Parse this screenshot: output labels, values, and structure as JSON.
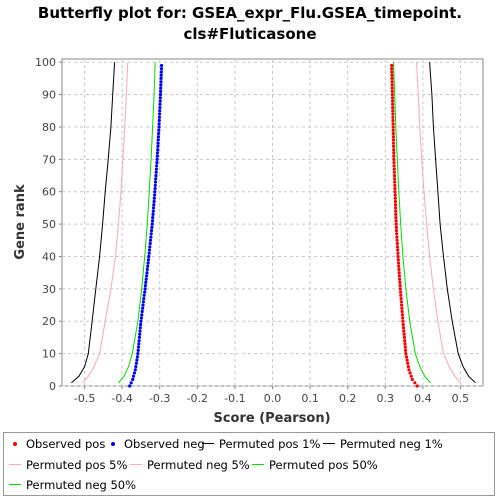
{
  "chart_data": {
    "type": "line",
    "title_lines": [
      "Butterfly plot for: GSEA_expr_Flu.GSEA_timepoint.",
      "cls#Fluticasone"
    ],
    "xlabel": "Score (Pearson)",
    "ylabel": "Gene rank",
    "xlim": [
      -0.56,
      0.56
    ],
    "ylim": [
      0,
      101
    ],
    "x_ticks": [
      -0.5,
      -0.4,
      -0.3,
      -0.2,
      -0.1,
      0.0,
      0.1,
      0.2,
      0.3,
      0.4,
      0.5
    ],
    "x_tick_labels": [
      "-0.5",
      "-0.4",
      "-0.3",
      "-0.2",
      "-0.1",
      "0.0",
      "0.1",
      "0.2",
      "0.3",
      "0.4",
      "0.5"
    ],
    "y_ticks": [
      0,
      10,
      20,
      30,
      40,
      50,
      60,
      70,
      80,
      90,
      100
    ],
    "y_tick_labels": [
      "0",
      "10",
      "20",
      "30",
      "40",
      "50",
      "60",
      "70",
      "80",
      "90",
      "100"
    ],
    "grid": true,
    "legend_position": "bottom",
    "series": [
      {
        "name": "Observed pos",
        "style": "dots",
        "color": "#ff0000",
        "points": [
          [
            0.385,
            0
          ],
          [
            0.372,
            2
          ],
          [
            0.363,
            5
          ],
          [
            0.355,
            10
          ],
          [
            0.347,
            20
          ],
          [
            0.34,
            30
          ],
          [
            0.334,
            40
          ],
          [
            0.329,
            50
          ],
          [
            0.326,
            60
          ],
          [
            0.323,
            70
          ],
          [
            0.321,
            80
          ],
          [
            0.319,
            90
          ],
          [
            0.317,
            99
          ]
        ]
      },
      {
        "name": "Observed neg",
        "style": "dots",
        "color": "#0000ff",
        "points": [
          [
            -0.38,
            0
          ],
          [
            -0.372,
            2
          ],
          [
            -0.365,
            5
          ],
          [
            -0.358,
            10
          ],
          [
            -0.35,
            20
          ],
          [
            -0.339,
            30
          ],
          [
            -0.329,
            40
          ],
          [
            -0.32,
            50
          ],
          [
            -0.313,
            60
          ],
          [
            -0.307,
            70
          ],
          [
            -0.302,
            80
          ],
          [
            -0.298,
            90
          ],
          [
            -0.295,
            99
          ]
        ]
      },
      {
        "name": "Permuted pos 1%",
        "style": "line",
        "color": "#000000",
        "points": [
          [
            0.54,
            1
          ],
          [
            0.522,
            3
          ],
          [
            0.507,
            6
          ],
          [
            0.494,
            10
          ],
          [
            0.478,
            20
          ],
          [
            0.465,
            30
          ],
          [
            0.455,
            40
          ],
          [
            0.446,
            50
          ],
          [
            0.44,
            60
          ],
          [
            0.434,
            70
          ],
          [
            0.428,
            80
          ],
          [
            0.424,
            90
          ],
          [
            0.418,
            100
          ]
        ]
      },
      {
        "name": "Permuted neg 1%",
        "style": "line",
        "color": "#000000",
        "points": [
          [
            -0.535,
            1
          ],
          [
            -0.515,
            3
          ],
          [
            -0.5,
            6
          ],
          [
            -0.49,
            10
          ],
          [
            -0.48,
            20
          ],
          [
            -0.47,
            30
          ],
          [
            -0.46,
            40
          ],
          [
            -0.452,
            50
          ],
          [
            -0.445,
            60
          ],
          [
            -0.437,
            70
          ],
          [
            -0.43,
            80
          ],
          [
            -0.425,
            90
          ],
          [
            -0.42,
            100
          ]
        ]
      },
      {
        "name": "Permuted pos 5%",
        "style": "line",
        "color": "#ffaaaa",
        "points": [
          [
            0.5,
            1
          ],
          [
            0.485,
            3
          ],
          [
            0.47,
            6
          ],
          [
            0.455,
            10
          ],
          [
            0.44,
            20
          ],
          [
            0.428,
            30
          ],
          [
            0.418,
            40
          ],
          [
            0.41,
            50
          ],
          [
            0.403,
            60
          ],
          [
            0.397,
            70
          ],
          [
            0.392,
            80
          ],
          [
            0.388,
            90
          ],
          [
            0.383,
            100
          ]
        ]
      },
      {
        "name": "Permuted neg 5%",
        "style": "line",
        "color": "#ffaaaa",
        "points": [
          [
            -0.505,
            1
          ],
          [
            -0.49,
            3
          ],
          [
            -0.475,
            6
          ],
          [
            -0.46,
            10
          ],
          [
            -0.445,
            20
          ],
          [
            -0.43,
            30
          ],
          [
            -0.418,
            40
          ],
          [
            -0.41,
            50
          ],
          [
            -0.403,
            60
          ],
          [
            -0.398,
            70
          ],
          [
            -0.393,
            80
          ],
          [
            -0.389,
            90
          ],
          [
            -0.385,
            100
          ]
        ]
      },
      {
        "name": "Permuted pos 50%",
        "style": "line",
        "color": "#00dd00",
        "points": [
          [
            0.42,
            1
          ],
          [
            0.405,
            3
          ],
          [
            0.392,
            6
          ],
          [
            0.38,
            10
          ],
          [
            0.365,
            20
          ],
          [
            0.355,
            30
          ],
          [
            0.347,
            40
          ],
          [
            0.341,
            50
          ],
          [
            0.336,
            60
          ],
          [
            0.332,
            70
          ],
          [
            0.328,
            80
          ],
          [
            0.325,
            90
          ],
          [
            0.322,
            100
          ]
        ]
      },
      {
        "name": "Permuted neg 50%",
        "style": "line",
        "color": "#00dd00",
        "points": [
          [
            -0.41,
            1
          ],
          [
            -0.395,
            3
          ],
          [
            -0.383,
            6
          ],
          [
            -0.373,
            10
          ],
          [
            -0.358,
            20
          ],
          [
            -0.348,
            30
          ],
          [
            -0.34,
            40
          ],
          [
            -0.333,
            50
          ],
          [
            -0.328,
            60
          ],
          [
            -0.323,
            70
          ],
          [
            -0.319,
            80
          ],
          [
            -0.315,
            90
          ],
          [
            -0.312,
            100
          ]
        ]
      }
    ]
  }
}
